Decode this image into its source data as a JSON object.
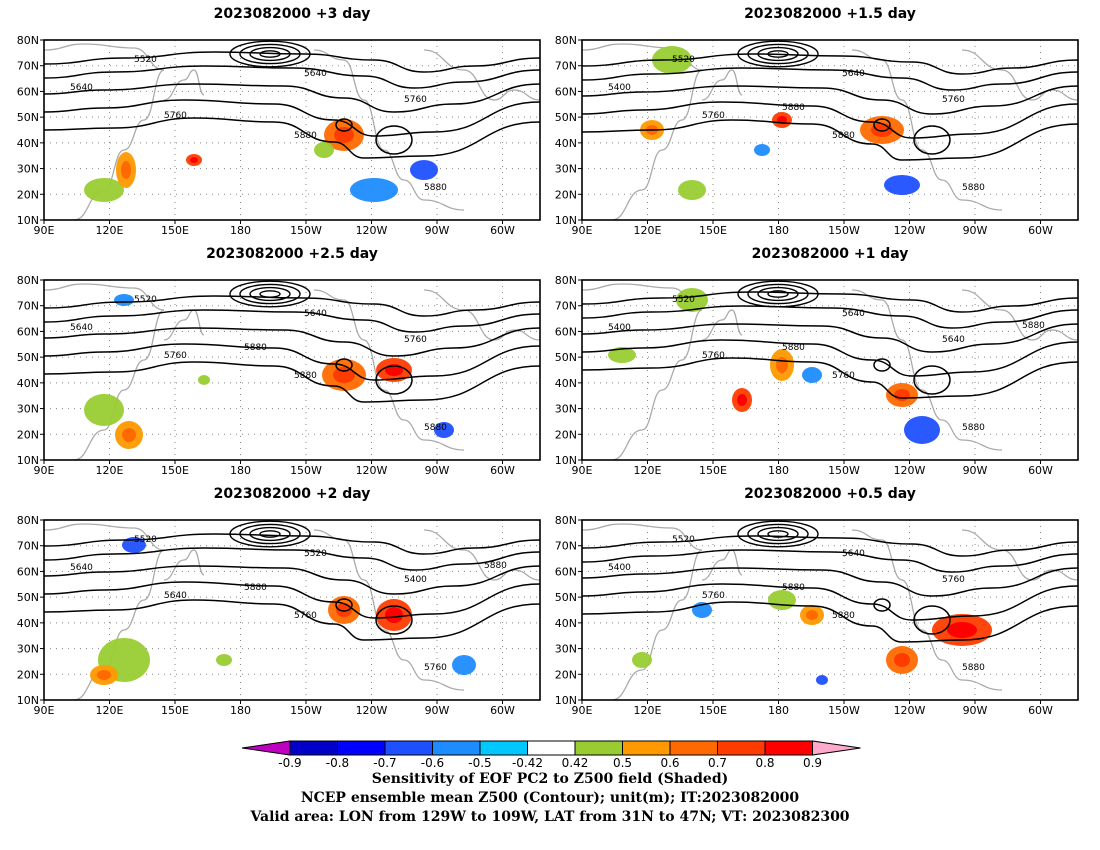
{
  "panels": [
    {
      "title": "2023082000  +3 day",
      "contour_labels": [
        "5520",
        "5640",
        "5640",
        "5760",
        "5760",
        "5880",
        "5880"
      ]
    },
    {
      "title": "2023082000  +1.5 day",
      "contour_labels": [
        "5520",
        "5640",
        "5400",
        "5760",
        "5760",
        "5880",
        "5880",
        "5880"
      ]
    },
    {
      "title": "2023082000  +2.5 day",
      "contour_labels": [
        "5520",
        "5640",
        "5640",
        "5760",
        "5760",
        "5880",
        "5880",
        "5880"
      ]
    },
    {
      "title": "2023082000  +1 day",
      "contour_labels": [
        "5520",
        "5640",
        "5400",
        "5640",
        "5760",
        "5760",
        "5880",
        "5880",
        "5880"
      ]
    },
    {
      "title": "2023082000  +2 day",
      "contour_labels": [
        "5520",
        "5520",
        "5640",
        "5400",
        "5640",
        "5760",
        "5760",
        "5880",
        "5880"
      ]
    },
    {
      "title": "2023082000  +0.5 day",
      "contour_labels": [
        "5520",
        "5640",
        "5400",
        "5760",
        "5760",
        "5880",
        "5880",
        "5880"
      ]
    }
  ],
  "lat_labels": [
    "80N",
    "70N",
    "60N",
    "50N",
    "40N",
    "30N",
    "20N",
    "10N"
  ],
  "lon_labels": [
    "90E",
    "120E",
    "150E",
    "180",
    "150W",
    "120W",
    "90W",
    "60W"
  ],
  "colorbar": {
    "ticks": [
      "-0.9",
      "-0.8",
      "-0.7",
      "-0.6",
      "-0.5",
      "-0.42",
      "0.42",
      "0.5",
      "0.6",
      "0.7",
      "0.8",
      "0.9"
    ],
    "colors": [
      "#c000c0",
      "#0000c8",
      "#0000ff",
      "#1e50ff",
      "#1e8cff",
      "#00c8ff",
      "#ffffff",
      "#99cc33",
      "#ff9900",
      "#ff6a00",
      "#ff3c00",
      "#ff0000",
      "#ffaacc"
    ]
  },
  "caption": {
    "line1": "Sensitivity of EOF PC2 to Z500 field (Shaded)",
    "line2": "NCEP ensemble mean Z500 (Contour); unit(m); IT:2023082000",
    "line3": "Valid area: LON from 129W to 109W, LAT from 31N to 47N; VT: 2023082300"
  }
}
